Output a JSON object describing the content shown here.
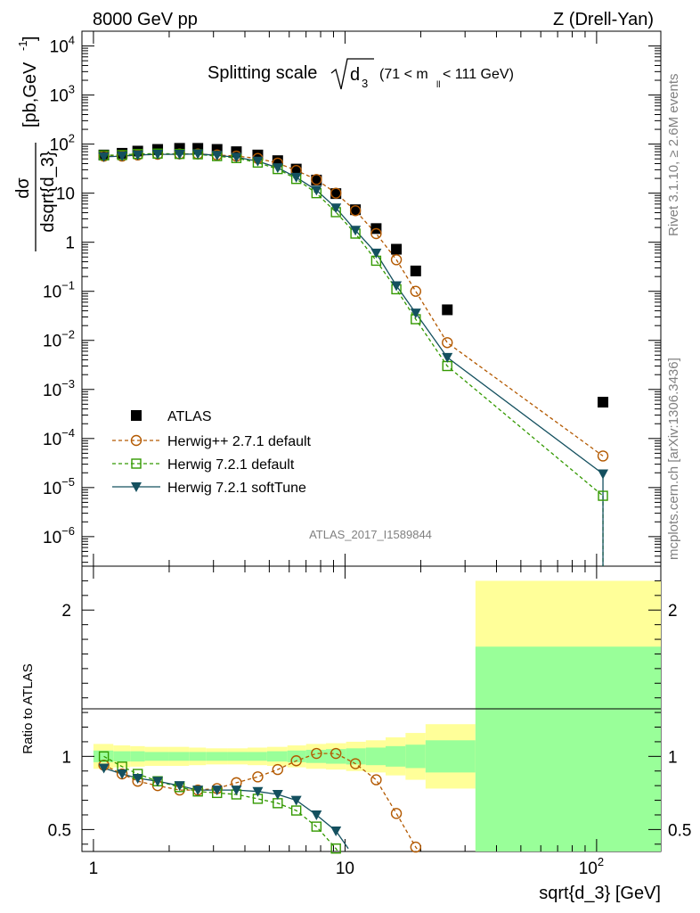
{
  "header": {
    "left": "8000 GeV pp",
    "right": "Z (Drell-Yan)"
  },
  "title": {
    "main": "Splitting scale",
    "sqrt_arg": "d",
    "sqrt_sub": "3",
    "cut_pre": "(71 < m",
    "cut_sub": "ll",
    "cut_post": " < 111 GeV)"
  },
  "side": {
    "rivet": "Rivet 3.1.10, ≥ 2.6M events",
    "mcplots": "mcplots.cern.ch [arXiv:1306.3436]"
  },
  "watermark": "ATLAS_2017_I1589844",
  "ylabel_main": {
    "num": "dσ",
    "den": "dsqrt{d_3}",
    "unit": "[pb,GeV",
    "unit_exp": "-1",
    "unit_close": "]"
  },
  "ylabel_ratio": "Ratio to ATLAS",
  "xlabel": "sqrt{d_3} [GeV]",
  "x_ticks": [
    "1",
    "10",
    "10",
    "2"
  ],
  "y_ticks_main": [
    {
      "base": "10",
      "exp": "4",
      "v": 10000
    },
    {
      "base": "10",
      "exp": "3",
      "v": 1000
    },
    {
      "base": "10",
      "exp": "2",
      "v": 100
    },
    {
      "base": "10",
      "exp": "",
      "v": 10
    },
    {
      "base": "1",
      "exp": "",
      "v": 1
    },
    {
      "base": "10",
      "exp": "−1",
      "v": 0.1
    },
    {
      "base": "10",
      "exp": "−2",
      "v": 0.01
    },
    {
      "base": "10",
      "exp": "−3",
      "v": 0.001
    },
    {
      "base": "10",
      "exp": "−4",
      "v": 0.0001
    },
    {
      "base": "10",
      "exp": "−5",
      "v": 1e-05
    },
    {
      "base": "10",
      "exp": "−6",
      "v": 1e-06
    }
  ],
  "y_ticks_ratio": [
    "0.5",
    "1",
    "2"
  ],
  "legend": [
    "ATLAS",
    "Herwig++ 2.7.1 default",
    "Herwig 7.2.1 default",
    "Herwig 7.2.1 softTune"
  ],
  "colors": {
    "data": "#000000",
    "herwigpp": "#b35900",
    "herwig7": "#339900",
    "softtune": "#14505f",
    "band_yellow": "#ffff99",
    "band_green": "#99ff99"
  },
  "chart_data": {
    "type": "scatter",
    "xscale": "log",
    "yscale": "log",
    "xlim": [
      0.9,
      180
    ],
    "ylim_main": [
      2.5e-07,
      20000
    ],
    "ylim_ratio": [
      0.35,
      2.3
    ],
    "bin_edges": [
      1.0,
      1.2,
      1.4,
      1.6,
      2.0,
      2.4,
      2.8,
      3.4,
      4.1,
      4.9,
      5.9,
      7.0,
      8.4,
      10.1,
      12.1,
      14.5,
      17.4,
      20.9,
      33,
      180
    ],
    "x": [
      1.1,
      1.3,
      1.5,
      1.8,
      2.2,
      2.6,
      3.1,
      3.7,
      4.5,
      5.4,
      6.4,
      7.7,
      9.2,
      11,
      13.3,
      16,
      19.1,
      25.5,
      106
    ],
    "series": [
      {
        "name": "ATLAS",
        "values": [
          60,
          65,
          72,
          78,
          82,
          82,
          78,
          70,
          60,
          46,
          31,
          18.5,
          9.8,
          4.6,
          1.9,
          0.72,
          0.26,
          0.042,
          0.00055
        ]
      },
      {
        "name": "Herwig++ 2.7.1 default",
        "values": [
          57,
          57,
          60,
          62,
          63,
          63,
          60,
          57,
          51,
          41,
          29,
          19,
          10,
          4.4,
          1.5,
          0.44,
          0.1,
          0.009,
          4.4e-05
        ]
      },
      {
        "name": "Herwig 7.2.1 default",
        "values": [
          59,
          60,
          63,
          64,
          63,
          62,
          57,
          52,
          42,
          31,
          19.5,
          10,
          4.1,
          1.5,
          0.42,
          0.11,
          0.027,
          0.003,
          6.8e-06
        ]
      },
      {
        "name": "Herwig 7.2.1 softTune",
        "values": [
          55,
          57,
          60,
          62,
          62,
          63,
          59,
          54,
          45,
          33,
          21,
          11.5,
          5.0,
          1.75,
          0.6,
          0.13,
          0.036,
          0.0045,
          1.9e-05
        ]
      }
    ],
    "ratio_series": [
      {
        "name": "Herwig++ 2.7.1 default",
        "values": [
          0.94,
          0.88,
          0.83,
          0.8,
          0.77,
          0.77,
          0.78,
          0.82,
          0.86,
          0.91,
          0.97,
          1.02,
          1.02,
          0.95,
          0.84,
          0.61,
          0.38
        ]
      },
      {
        "name": "Herwig 7.2.1 default",
        "values": [
          1.0,
          0.93,
          0.88,
          0.83,
          0.79,
          0.76,
          0.75,
          0.74,
          0.71,
          0.68,
          0.63,
          0.52,
          0.37
        ]
      },
      {
        "name": "Herwig 7.2.1 softTune",
        "values": [
          0.92,
          0.88,
          0.85,
          0.83,
          0.8,
          0.77,
          0.77,
          0.77,
          0.76,
          0.74,
          0.7,
          0.6,
          0.49
        ]
      }
    ],
    "band_yellow_halfwidth": [
      0.085,
      0.075,
      0.07,
      0.065,
      0.065,
      0.06,
      0.055,
      0.055,
      0.06,
      0.065,
      0.075,
      0.085,
      0.09,
      0.1,
      0.11,
      0.13,
      0.16,
      0.22,
      1.2
    ],
    "band_green_halfwidth": [
      0.04,
      0.035,
      0.035,
      0.03,
      0.03,
      0.03,
      0.03,
      0.03,
      0.03,
      0.035,
      0.04,
      0.045,
      0.05,
      0.055,
      0.06,
      0.07,
      0.08,
      0.11,
      0.75
    ]
  }
}
